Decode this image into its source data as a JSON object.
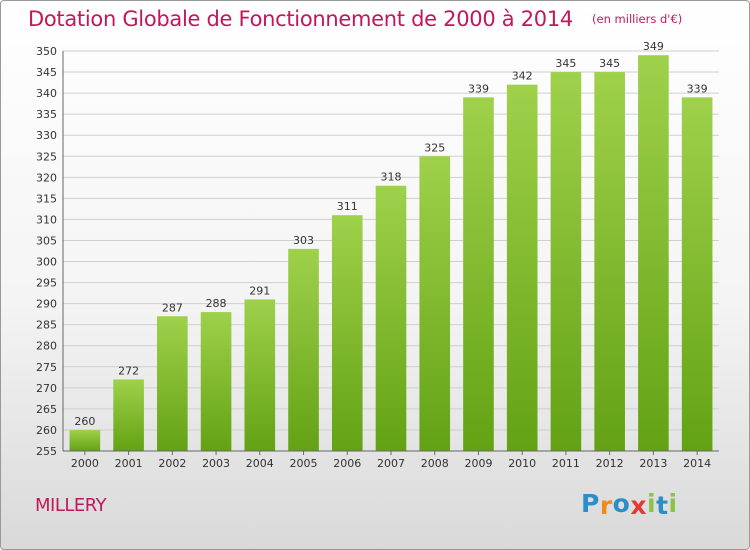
{
  "title": "Dotation Globale de Fonctionnement de 2000 à 2014",
  "unit_note": "(en milliers d'€)",
  "commune": "MILLERY",
  "brand": {
    "letters": [
      "P",
      "r",
      "o",
      "x",
      "i",
      "t",
      "i"
    ],
    "colors": [
      "#2a8ec9",
      "#f08a1c",
      "#2a8ec9",
      "#e53935",
      "#8bc34a",
      "#2a8ec9",
      "#8bc34a"
    ]
  },
  "colors": {
    "bar_top": "#9fd14b",
    "bar_bottom": "#63a214",
    "title": "#c2185b",
    "grid": "#cfcfcf"
  },
  "chart_data": {
    "type": "bar",
    "categories": [
      "2000",
      "2001",
      "2002",
      "2003",
      "2004",
      "2005",
      "2006",
      "2007",
      "2008",
      "2009",
      "2010",
      "2011",
      "2012",
      "2013",
      "2014"
    ],
    "values": [
      260,
      272,
      287,
      288,
      291,
      303,
      311,
      318,
      325,
      339,
      342,
      345,
      345,
      349,
      339
    ],
    "ylim": [
      255,
      350
    ],
    "yticks": [
      255,
      260,
      265,
      270,
      275,
      280,
      285,
      290,
      295,
      300,
      305,
      310,
      315,
      320,
      325,
      330,
      335,
      340,
      345,
      350
    ],
    "grid": true,
    "data_labels": true
  }
}
